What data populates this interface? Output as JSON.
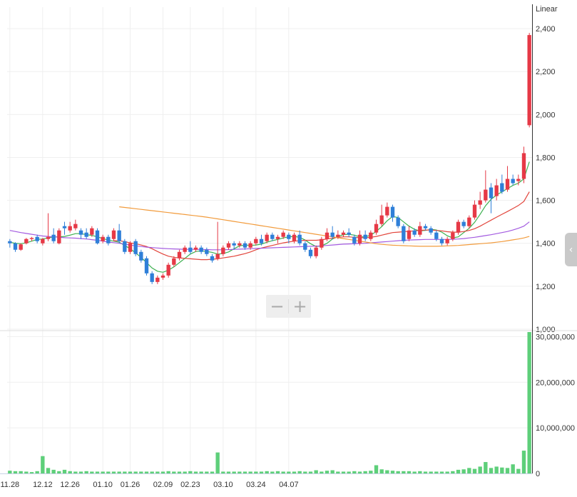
{
  "chart_data": {
    "type": "candlestick",
    "scale_label": "Linear",
    "colors": {
      "up": "#e63946",
      "down": "#2f7fd8",
      "volume": "#5ecf7a",
      "ma5": "#3cb04f",
      "ma20": "#e2453c",
      "ma60": "#a35be0",
      "ma120": "#f29b3c",
      "grid": "#efefef"
    },
    "price_axis": {
      "min": 1000,
      "max": 2500,
      "ticks": [
        "1,000",
        "1,200",
        "1,400",
        "1,600",
        "1,800",
        "2,000",
        "2,200",
        "2,400"
      ]
    },
    "volume_axis": {
      "min": 0,
      "max": 31000000,
      "ticks": [
        "0",
        "10,000,000",
        "20,000,000",
        "30,000,000"
      ]
    },
    "x_ticks": [
      "11.28",
      "12.12",
      "12.26",
      "01.10",
      "01.26",
      "02.09",
      "02.23",
      "03.10",
      "03.24",
      "04.07"
    ],
    "x_tick_index": [
      0,
      6,
      11,
      17,
      22,
      28,
      33,
      39,
      45,
      51
    ],
    "bars": [
      [
        1410,
        1400,
        1420,
        1380,
        0.6
      ],
      [
        1400,
        1370,
        1405,
        1360,
        0.5
      ],
      [
        1370,
        1395,
        1400,
        1365,
        0.5
      ],
      [
        1400,
        1420,
        1425,
        1395,
        0.4
      ],
      [
        1420,
        1425,
        1430,
        1410,
        0.3
      ],
      [
        1430,
        1410,
        1440,
        1400,
        0.5
      ],
      [
        1400,
        1420,
        1425,
        1390,
        3.8
      ],
      [
        1420,
        1430,
        1540,
        1410,
        1.2
      ],
      [
        1440,
        1410,
        1470,
        1400,
        0.8
      ],
      [
        1400,
        1460,
        1470,
        1395,
        0.5
      ],
      [
        1480,
        1470,
        1500,
        1440,
        0.8
      ],
      [
        1460,
        1480,
        1500,
        1450,
        0.5
      ],
      [
        1470,
        1490,
        1510,
        1460,
        0.4
      ],
      [
        1460,
        1440,
        1470,
        1420,
        0.4
      ],
      [
        1450,
        1430,
        1470,
        1420,
        0.5
      ],
      [
        1440,
        1470,
        1480,
        1430,
        0.4
      ],
      [
        1460,
        1400,
        1470,
        1395,
        0.4
      ],
      [
        1410,
        1430,
        1440,
        1400,
        0.4
      ],
      [
        1430,
        1400,
        1440,
        1390,
        0.4
      ],
      [
        1420,
        1460,
        1470,
        1410,
        0.4
      ],
      [
        1460,
        1410,
        1490,
        1400,
        0.4
      ],
      [
        1410,
        1360,
        1420,
        1350,
        0.4
      ],
      [
        1360,
        1400,
        1410,
        1350,
        0.4
      ],
      [
        1410,
        1350,
        1420,
        1340,
        0.4
      ],
      [
        1360,
        1320,
        1370,
        1310,
        0.4
      ],
      [
        1330,
        1260,
        1340,
        1250,
        0.4
      ],
      [
        1260,
        1220,
        1270,
        1210,
        0.4
      ],
      [
        1220,
        1240,
        1250,
        1210,
        0.4
      ],
      [
        1240,
        1250,
        1260,
        1230,
        0.4
      ],
      [
        1250,
        1300,
        1310,
        1240,
        0.5
      ],
      [
        1300,
        1330,
        1340,
        1290,
        0.4
      ],
      [
        1330,
        1360,
        1370,
        1320,
        0.4
      ],
      [
        1360,
        1380,
        1390,
        1350,
        0.4
      ],
      [
        1380,
        1360,
        1410,
        1350,
        0.5
      ],
      [
        1370,
        1380,
        1390,
        1360,
        0.4
      ],
      [
        1380,
        1360,
        1390,
        1350,
        0.4
      ],
      [
        1370,
        1350,
        1380,
        1340,
        0.4
      ],
      [
        1340,
        1320,
        1350,
        1310,
        0.4
      ],
      [
        1330,
        1350,
        1500,
        1320,
        4.6
      ],
      [
        1350,
        1380,
        1390,
        1340,
        0.4
      ],
      [
        1380,
        1400,
        1410,
        1370,
        0.4
      ],
      [
        1400,
        1390,
        1410,
        1370,
        0.4
      ],
      [
        1390,
        1400,
        1410,
        1380,
        0.4
      ],
      [
        1400,
        1380,
        1410,
        1370,
        0.4
      ],
      [
        1380,
        1400,
        1410,
        1370,
        0.4
      ],
      [
        1400,
        1420,
        1430,
        1390,
        0.4
      ],
      [
        1420,
        1400,
        1440,
        1390,
        0.4
      ],
      [
        1410,
        1440,
        1450,
        1400,
        0.5
      ],
      [
        1440,
        1420,
        1450,
        1410,
        0.4
      ],
      [
        1420,
        1430,
        1440,
        1400,
        0.5
      ],
      [
        1430,
        1450,
        1460,
        1420,
        0.4
      ],
      [
        1440,
        1420,
        1450,
        1400,
        0.4
      ],
      [
        1410,
        1440,
        1450,
        1400,
        0.4
      ],
      [
        1440,
        1400,
        1460,
        1390,
        0.5
      ],
      [
        1400,
        1370,
        1410,
        1360,
        0.4
      ],
      [
        1370,
        1340,
        1380,
        1330,
        0.4
      ],
      [
        1340,
        1380,
        1390,
        1330,
        0.7
      ],
      [
        1380,
        1420,
        1430,
        1370,
        0.4
      ],
      [
        1420,
        1450,
        1470,
        1410,
        0.6
      ],
      [
        1450,
        1430,
        1480,
        1420,
        0.7
      ],
      [
        1430,
        1440,
        1460,
        1420,
        0.4
      ],
      [
        1440,
        1450,
        1460,
        1430,
        0.4
      ],
      [
        1450,
        1440,
        1470,
        1430,
        0.4
      ],
      [
        1430,
        1400,
        1440,
        1390,
        0.5
      ],
      [
        1400,
        1440,
        1460,
        1390,
        0.4
      ],
      [
        1440,
        1420,
        1460,
        1410,
        0.5
      ],
      [
        1420,
        1450,
        1460,
        1410,
        0.6
      ],
      [
        1450,
        1490,
        1510,
        1440,
        1.8
      ],
      [
        1490,
        1530,
        1580,
        1480,
        0.9
      ],
      [
        1530,
        1570,
        1590,
        1520,
        0.7
      ],
      [
        1570,
        1520,
        1580,
        1500,
        0.6
      ],
      [
        1520,
        1480,
        1530,
        1470,
        0.5
      ],
      [
        1480,
        1410,
        1490,
        1400,
        0.5
      ],
      [
        1420,
        1460,
        1480,
        1410,
        0.5
      ],
      [
        1460,
        1440,
        1470,
        1430,
        0.4
      ],
      [
        1440,
        1480,
        1500,
        1430,
        0.5
      ],
      [
        1480,
        1470,
        1490,
        1460,
        0.4
      ],
      [
        1470,
        1450,
        1480,
        1440,
        0.4
      ],
      [
        1450,
        1420,
        1460,
        1410,
        0.4
      ],
      [
        1420,
        1400,
        1430,
        1390,
        0.4
      ],
      [
        1400,
        1420,
        1430,
        1390,
        0.4
      ],
      [
        1420,
        1450,
        1460,
        1410,
        0.5
      ],
      [
        1450,
        1500,
        1510,
        1440,
        0.8
      ],
      [
        1500,
        1480,
        1510,
        1470,
        0.9
      ],
      [
        1480,
        1520,
        1530,
        1470,
        1.2
      ],
      [
        1520,
        1580,
        1600,
        1510,
        1.0
      ],
      [
        1580,
        1600,
        1640,
        1560,
        1.5
      ],
      [
        1600,
        1650,
        1740,
        1590,
        2.5
      ],
      [
        1660,
        1610,
        1680,
        1540,
        1.2
      ],
      [
        1620,
        1670,
        1700,
        1600,
        1.5
      ],
      [
        1680,
        1640,
        1720,
        1630,
        1.3
      ],
      [
        1650,
        1700,
        1760,
        1640,
        1.2
      ],
      [
        1700,
        1680,
        1720,
        1670,
        2.0
      ],
      [
        1690,
        1700,
        1720,
        1670,
        1.0
      ],
      [
        1700,
        1820,
        1850,
        1680,
        5.0
      ],
      [
        1950,
        2370,
        2380,
        1940,
        31.0
      ]
    ],
    "ma_series": [
      {
        "values": [
          1405,
          1400,
          1398,
          1402,
          1410,
          1418,
          1420,
          1425,
          1430,
          1430,
          1432,
          1438,
          1445,
          1445,
          1440,
          1437,
          1430,
          1422,
          1415,
          1410,
          1405,
          1390,
          1375,
          1355,
          1335,
          1310,
          1285,
          1270,
          1265,
          1275,
          1290,
          1310,
          1330,
          1350,
          1362,
          1365,
          1362,
          1358,
          1350,
          1352,
          1360,
          1375,
          1388,
          1392,
          1390,
          1392,
          1396,
          1405,
          1412,
          1418,
          1425,
          1430,
          1432,
          1428,
          1415,
          1398,
          1385,
          1388,
          1400,
          1420,
          1432,
          1440,
          1442,
          1438,
          1430,
          1430,
          1438,
          1455,
          1478,
          1505,
          1525,
          1520,
          1500,
          1480,
          1465,
          1458,
          1460,
          1465,
          1462,
          1452,
          1435,
          1425,
          1430,
          1450,
          1470,
          1498,
          1535,
          1575,
          1605,
          1625,
          1640,
          1655,
          1670,
          1680,
          1700,
          1780
        ]
      },
      {
        "values": [
          null,
          null,
          null,
          null,
          null,
          null,
          null,
          null,
          null,
          null,
          null,
          null,
          null,
          null,
          null,
          null,
          null,
          null,
          null,
          1412,
          1412,
          1408,
          1402,
          1398,
          1392,
          1385,
          1375,
          1362,
          1350,
          1340,
          1335,
          1332,
          1330,
          1328,
          1326,
          1324,
          1324,
          1326,
          1328,
          1332,
          1336,
          1340,
          1346,
          1352,
          1360,
          1370,
          1378,
          1384,
          1390,
          1396,
          1402,
          1406,
          1410,
          1412,
          1414,
          1414,
          1414,
          1416,
          1420,
          1424,
          1428,
          1430,
          1430,
          1428,
          1426,
          1426,
          1428,
          1432,
          1438,
          1444,
          1450,
          1452,
          1454,
          1456,
          1458,
          1460,
          1462,
          1462,
          1460,
          1458,
          1454,
          1452,
          1452,
          1455,
          1460,
          1468,
          1480,
          1494,
          1508,
          1522,
          1535,
          1548,
          1562,
          1576,
          1595,
          1640
        ]
      },
      {
        "values": [
          1460,
          1455,
          1450,
          1446,
          1442,
          1438,
          1434,
          1432,
          1430,
          1428,
          1426,
          1425,
          1424,
          1422,
          1420,
          1417,
          1414,
          1410,
          1406,
          1403,
          1400,
          1396,
          1392,
          1388,
          1385,
          1382,
          1380,
          1378,
          1376,
          1375,
          1374,
          1373,
          1372,
          1372,
          1372,
          1371,
          1371,
          1370,
          1370,
          1370,
          1371,
          1372,
          1373,
          1374,
          1375,
          1376,
          1377,
          1378,
          1379,
          1380,
          1381,
          1382,
          1383,
          1384,
          1385,
          1386,
          1387,
          1388,
          1390,
          1392,
          1394,
          1396,
          1397,
          1398,
          1399,
          1400,
          1402,
          1404,
          1406,
          1408,
          1410,
          1412,
          1414,
          1415,
          1416,
          1417,
          1418,
          1418,
          1418,
          1418,
          1418,
          1419,
          1420,
          1422,
          1425,
          1428,
          1432,
          1436,
          1440,
          1445,
          1450,
          1455,
          1462,
          1470,
          1480,
          1500
        ]
      },
      {
        "values": [
          null,
          null,
          null,
          null,
          null,
          null,
          null,
          null,
          null,
          null,
          null,
          null,
          null,
          null,
          null,
          null,
          null,
          null,
          null,
          null,
          1570,
          1567,
          1564,
          1561,
          1558,
          1555,
          1552,
          1549,
          1546,
          1543,
          1540,
          1537,
          1534,
          1531,
          1528,
          1525,
          1522,
          1518,
          1514,
          1510,
          1506,
          1502,
          1498,
          1494,
          1490,
          1486,
          1482,
          1478,
          1474,
          1470,
          1466,
          1462,
          1458,
          1454,
          1450,
          1446,
          1442,
          1438,
          1434,
          1430,
          1426,
          1422,
          1418,
          1414,
          1410,
          1406,
          1402,
          1398,
          1395,
          1393,
          1391,
          1390,
          1389,
          1388,
          1387,
          1386,
          1386,
          1386,
          1386,
          1387,
          1388,
          1389,
          1390,
          1392,
          1394,
          1396,
          1398,
          1400,
          1402,
          1405,
          1408,
          1412,
          1416,
          1420,
          1425,
          1432
        ]
      }
    ]
  }
}
